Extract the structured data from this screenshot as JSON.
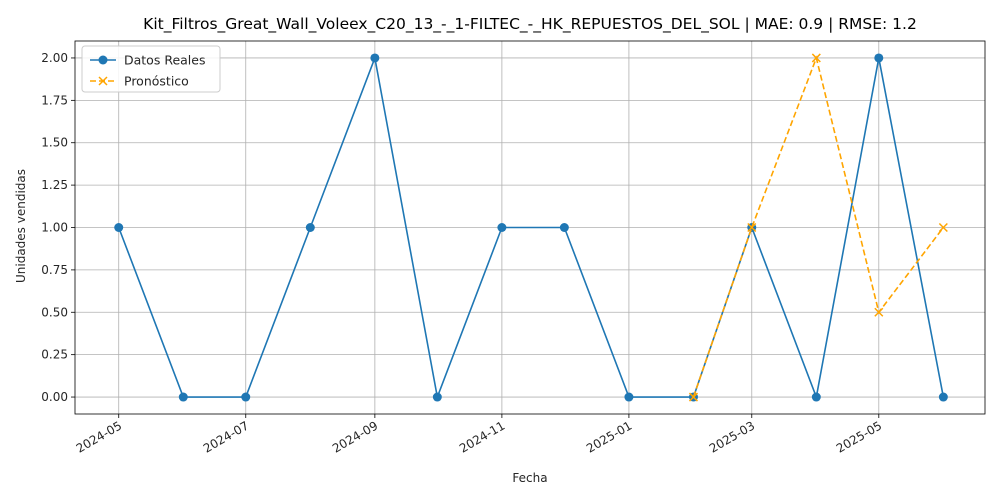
{
  "chart_data": {
    "type": "line",
    "title": "Kit_Filtros_Great_Wall_Voleex_C20_13_-_1-FILTEC_-_HK_REPUESTOS_DEL_SOL | MAE: 0.9 | RMSE: 1.2",
    "xlabel": "Fecha",
    "ylabel": "Unidades vendidas",
    "x_ticks": [
      "2024-05",
      "2024-07",
      "2024-09",
      "2024-11",
      "2025-01",
      "2025-03",
      "2025-05"
    ],
    "y_ticks": [
      "0.00",
      "0.25",
      "0.50",
      "0.75",
      "1.00",
      "1.25",
      "1.50",
      "1.75",
      "2.00"
    ],
    "ylim": [
      -0.1,
      2.1
    ],
    "xlim": [
      "2024-04-10",
      "2025-06-21"
    ],
    "grid": true,
    "legend_position": "top-left",
    "series": [
      {
        "name": "Datos Reales",
        "color": "#1f77b4",
        "style": "solid",
        "marker": "circle",
        "x": [
          "2024-05-01",
          "2024-06-01",
          "2024-07-01",
          "2024-08-01",
          "2024-09-01",
          "2024-10-01",
          "2024-11-01",
          "2024-12-01",
          "2025-01-01",
          "2025-02-01",
          "2025-03-01",
          "2025-04-01",
          "2025-05-01",
          "2025-06-01"
        ],
        "values": [
          1,
          0,
          0,
          1,
          2,
          0,
          1,
          1,
          0,
          0,
          1,
          0,
          2,
          0
        ]
      },
      {
        "name": "Pronóstico",
        "color": "#ffa500",
        "style": "dashed",
        "marker": "x",
        "x": [
          "2025-02-01",
          "2025-03-01",
          "2025-04-01",
          "2025-05-01",
          "2025-06-01"
        ],
        "values": [
          0,
          1,
          2,
          0.5,
          1
        ]
      }
    ]
  }
}
